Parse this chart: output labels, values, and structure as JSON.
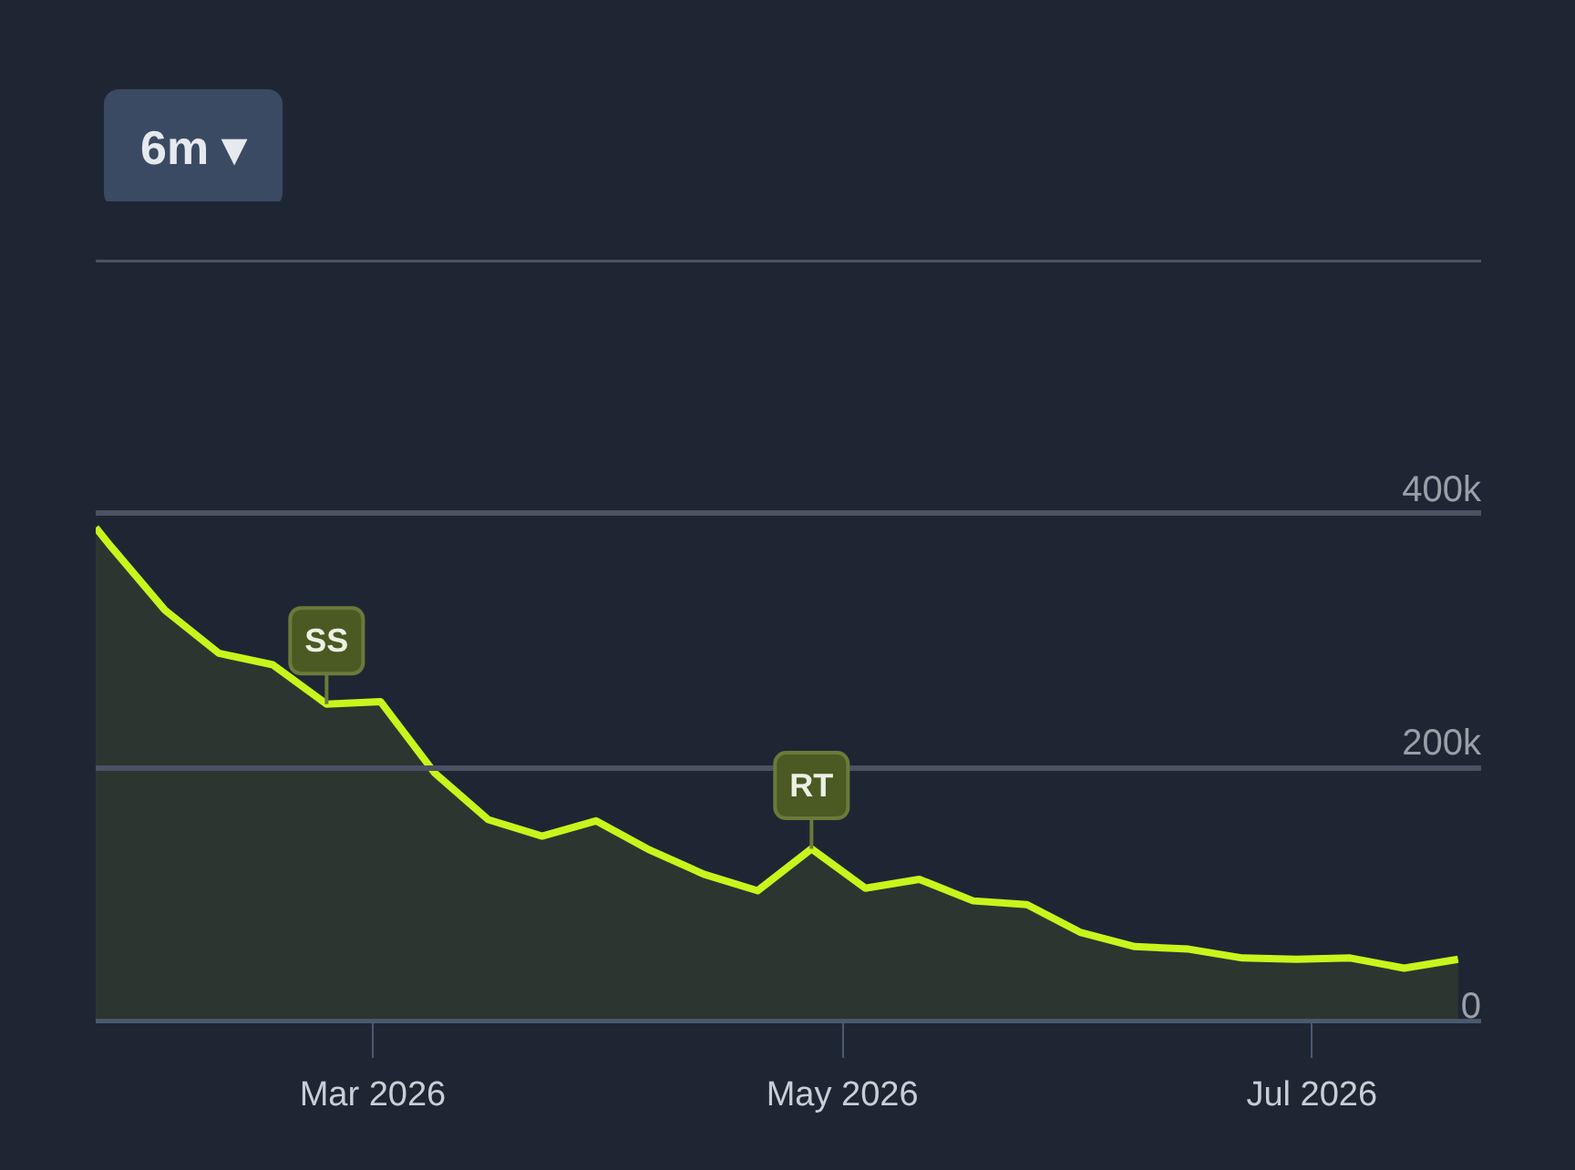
{
  "chart_data": {
    "type": "area",
    "color": "#c8f51c",
    "x": [
      "2026-01-24",
      "2026-01-26",
      "2026-02-02",
      "2026-02-09",
      "2026-02-16",
      "2026-02-23",
      "2026-03-02",
      "2026-03-09",
      "2026-03-16",
      "2026-03-23",
      "2026-03-30",
      "2026-04-06",
      "2026-04-13",
      "2026-04-20",
      "2026-04-27",
      "2026-05-04",
      "2026-05-11",
      "2026-05-18",
      "2026-05-25",
      "2026-06-01",
      "2026-06-08",
      "2026-06-15",
      "2026-06-22",
      "2026-06-29",
      "2026-07-06",
      "2026-07-13",
      "2026-07-20"
    ],
    "values": [
      389000,
      374000,
      324000,
      290000,
      281000,
      250000,
      252000,
      196000,
      159000,
      146000,
      158000,
      135000,
      116000,
      103000,
      136000,
      105000,
      112000,
      95000,
      92000,
      70000,
      59000,
      57000,
      50000,
      49000,
      50000,
      42000,
      49000
    ],
    "xlim": [
      "2026-01-24",
      "2026-07-23"
    ],
    "xticks": [
      {
        "value": "2026-03-01",
        "label": "Mar 2026"
      },
      {
        "value": "2026-05-01",
        "label": "May 2026"
      },
      {
        "value": "2026-07-01",
        "label": "Jul 2026"
      }
    ],
    "ylim": [
      0,
      600000
    ],
    "yticks": [
      {
        "value": 0,
        "label": "0"
      },
      {
        "value": 200000,
        "label": "200k"
      },
      {
        "value": 400000,
        "label": "400k"
      },
      {
        "value": 600000,
        "label": null
      }
    ],
    "grid": "y",
    "annotations": [
      "6m ▾",
      {
        "text": "SS",
        "x": "2026-02-23",
        "y": 250000
      },
      {
        "text": "RT",
        "x": "2026-04-27",
        "y": 136000
      }
    ]
  }
}
